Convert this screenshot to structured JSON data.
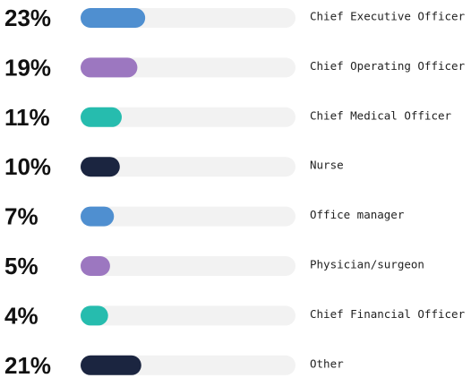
{
  "chart_data": {
    "type": "bar",
    "orientation": "horizontal",
    "categories": [
      "Chief Executive Officer",
      "Chief Operating Officer",
      "Chief Medical Officer",
      "Nurse",
      "Office manager",
      "Physician/surgeon",
      "Chief Financial Officer",
      "Other"
    ],
    "values": [
      23,
      19,
      11,
      10,
      7,
      5,
      4,
      21
    ],
    "value_labels": [
      "23%",
      "19%",
      "11%",
      "10%",
      "7%",
      "5%",
      "4%",
      "21%"
    ],
    "colors": [
      "#4f8fd0",
      "#9c77c0",
      "#26bcae",
      "#1b2540",
      "#4f8fd0",
      "#9c77c0",
      "#26bcae",
      "#1b2540"
    ]
  }
}
